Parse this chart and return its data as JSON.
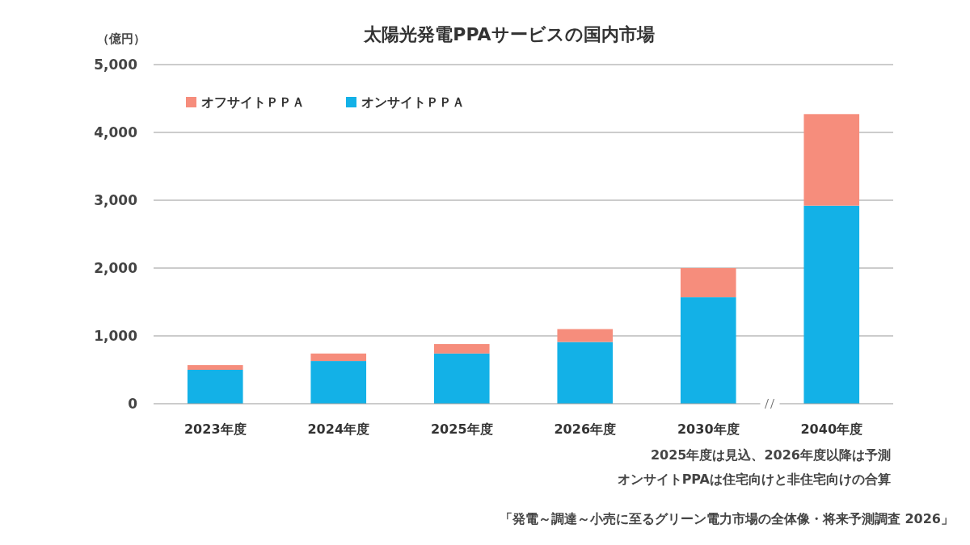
{
  "chart_data": {
    "type": "bar",
    "stacked": true,
    "title": "太陽光発電PPAサービスの国内市場",
    "ylabel": "（億円）",
    "categories": [
      "2023年度",
      "2024年度",
      "2025年度",
      "2026年度",
      "2030年度",
      "2040年度"
    ],
    "series": [
      {
        "name": "オンサイトＰＰＡ",
        "color": "#13b1e7",
        "values": [
          500,
          630,
          740,
          910,
          1570,
          2920
        ]
      },
      {
        "name": "オフサイトＰＰＡ",
        "color": "#f68d7c",
        "values": [
          70,
          110,
          140,
          190,
          430,
          1350
        ]
      }
    ],
    "ylim": [
      0,
      5000
    ],
    "yticks": [
      {
        "value": 0,
        "label": "0"
      },
      {
        "value": 1000,
        "label": "1,000"
      },
      {
        "value": 2000,
        "label": "2,000"
      },
      {
        "value": 3000,
        "label": "3,000"
      },
      {
        "value": 4000,
        "label": "4,000"
      },
      {
        "value": 5000,
        "label": "5,000"
      }
    ],
    "grid": "y",
    "legend": "top left",
    "annotations": [
      "2025年度は見込、2026年度以降は予測",
      "オンサイトPPAは住宅向けと非住宅向けの合算",
      "「発電～調達～小売に至るグリーン電力市場の全体像・将来予測調査 2026」"
    ]
  }
}
